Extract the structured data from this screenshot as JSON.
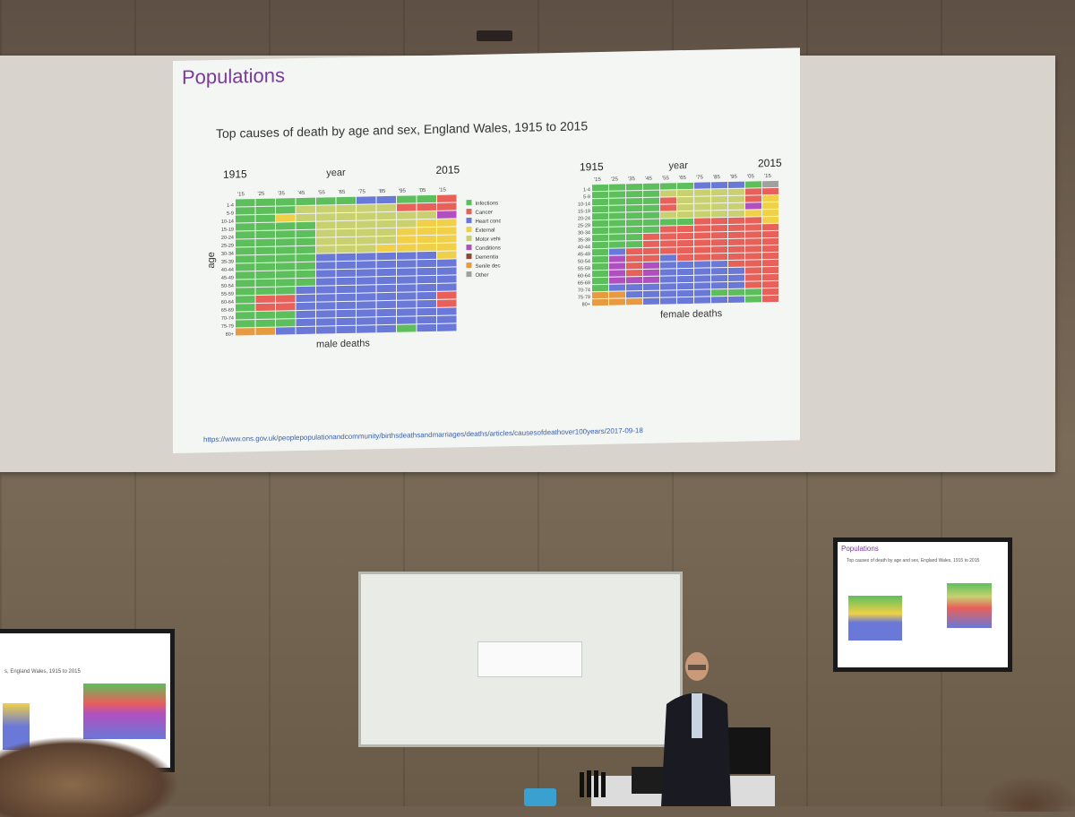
{
  "slide": {
    "title": "Populations",
    "subtitle": "Top causes of death by age and sex, England Wales, 1915 to 2015",
    "link": "https://www.ons.gov.uk/peoplepopulationandcommunity/birthsdeathsandmarriages/deaths/articles/causesofdeathover100years/2017-09-18"
  },
  "colors": {
    "Infections": "#5cbf5c",
    "Cancer": "#e8605a",
    "Heart conditions": "#6a78d8",
    "External": "#f0d048",
    "Motor vehicle incidents": "#c8d070",
    "Conditions of the nervous system": "#b050c0",
    "Dementia": "#8a4a30",
    "Senile decay": "#e89a40",
    "Other": "#a0a0a0"
  },
  "chart_data": [
    {
      "type": "heatmap",
      "title": "",
      "xlabel": "year",
      "ylabel": "age",
      "caption": "male deaths",
      "year_start": "1915",
      "year_end": "2015",
      "x": [
        "'15",
        "'25",
        "'35",
        "'45",
        "'55",
        "'65",
        "'75",
        "'85",
        "'95",
        "'05",
        "'15"
      ],
      "y": [
        "1-4",
        "5-9",
        "10-14",
        "15-19",
        "20-24",
        "25-29",
        "30-34",
        "35-39",
        "40-44",
        "45-49",
        "50-54",
        "55-59",
        "60-64",
        "65-69",
        "70-74",
        "75-79",
        "80+"
      ],
      "legend": [
        "Infections",
        "Cancer",
        "Heart conditions",
        "External",
        "Motor vehicle incidents",
        "Conditions of the nervous system",
        "Dementia",
        "Senile decay",
        "Other"
      ],
      "codes": {
        "I": "Infections",
        "C": "Cancer",
        "H": "Heart conditions",
        "E": "External",
        "M": "Motor vehicle incidents",
        "N": "Conditions of the nervous system",
        "D": "Dementia",
        "S": "Senile decay",
        "O": "Other"
      },
      "grid": [
        "IIIIIIHHIIC",
        "IIIMMMMMCCC",
        "IIEMMMMMMMN",
        "IIIIMMMMMEE",
        "IIIIMMMMEEE",
        "IIIIMMMMEEE",
        "IIIIMMMEEEE",
        "IIIIHHHHHHE",
        "IIIIHHHHHHH",
        "IIIIHHHHHHH",
        "IIIIHHHHHHH",
        "IIIHHHHHHHH",
        "ICCHHHHHHHC",
        "ICCHHHHHHHC",
        "IIIHHHHHHHH",
        "IIIHHHHHHHH",
        "SSHHHHHHIHH"
      ]
    },
    {
      "type": "heatmap",
      "title": "",
      "xlabel": "year",
      "ylabel": "",
      "caption": "female deaths",
      "year_start": "1915",
      "year_end": "2015",
      "x": [
        "'15",
        "'25",
        "'35",
        "'45",
        "'55",
        "'65",
        "'75",
        "'85",
        "'95",
        "'05",
        "'15"
      ],
      "y": [
        "1-4",
        "5-9",
        "10-14",
        "15-19",
        "20-24",
        "25-29",
        "30-34",
        "35-39",
        "40-44",
        "45-49",
        "50-54",
        "55-59",
        "60-64",
        "65-69",
        "70-74",
        "75-79",
        "80+"
      ],
      "codes": {
        "I": "Infections",
        "C": "Cancer",
        "H": "Heart conditions",
        "E": "External",
        "M": "Motor vehicle incidents",
        "N": "Conditions of the nervous system",
        "D": "Dementia",
        "S": "Senile decay",
        "O": "Other"
      },
      "grid": [
        "IIIIIIHHHIO",
        "IIIIMMMMMCC",
        "IIIICMMMMCE",
        "IIIICMMMMNE",
        "IIIIMMMMMEE",
        "IIIIIICCCCE",
        "IIIICCCCCCC",
        "IIICCCCCCCC",
        "IIICCCCCCCC",
        "IHCCCCCCCCC",
        "INCCHCCCCCC",
        "INCNHHHHCCC",
        "INCNHHHHHCC",
        "INNNHHHHHCC",
        "IHHHHHHHHCC",
        "SSHHHHHIIIC",
        "SSSHHHHHHIC"
      ]
    }
  ],
  "side_screens": {
    "right_title": "Populations",
    "right_subtitle": "Top causes of death by age and sex, England Wales, 1915 to 2015",
    "left_subtitle": "s, England Wales, 1915 to 2015"
  }
}
